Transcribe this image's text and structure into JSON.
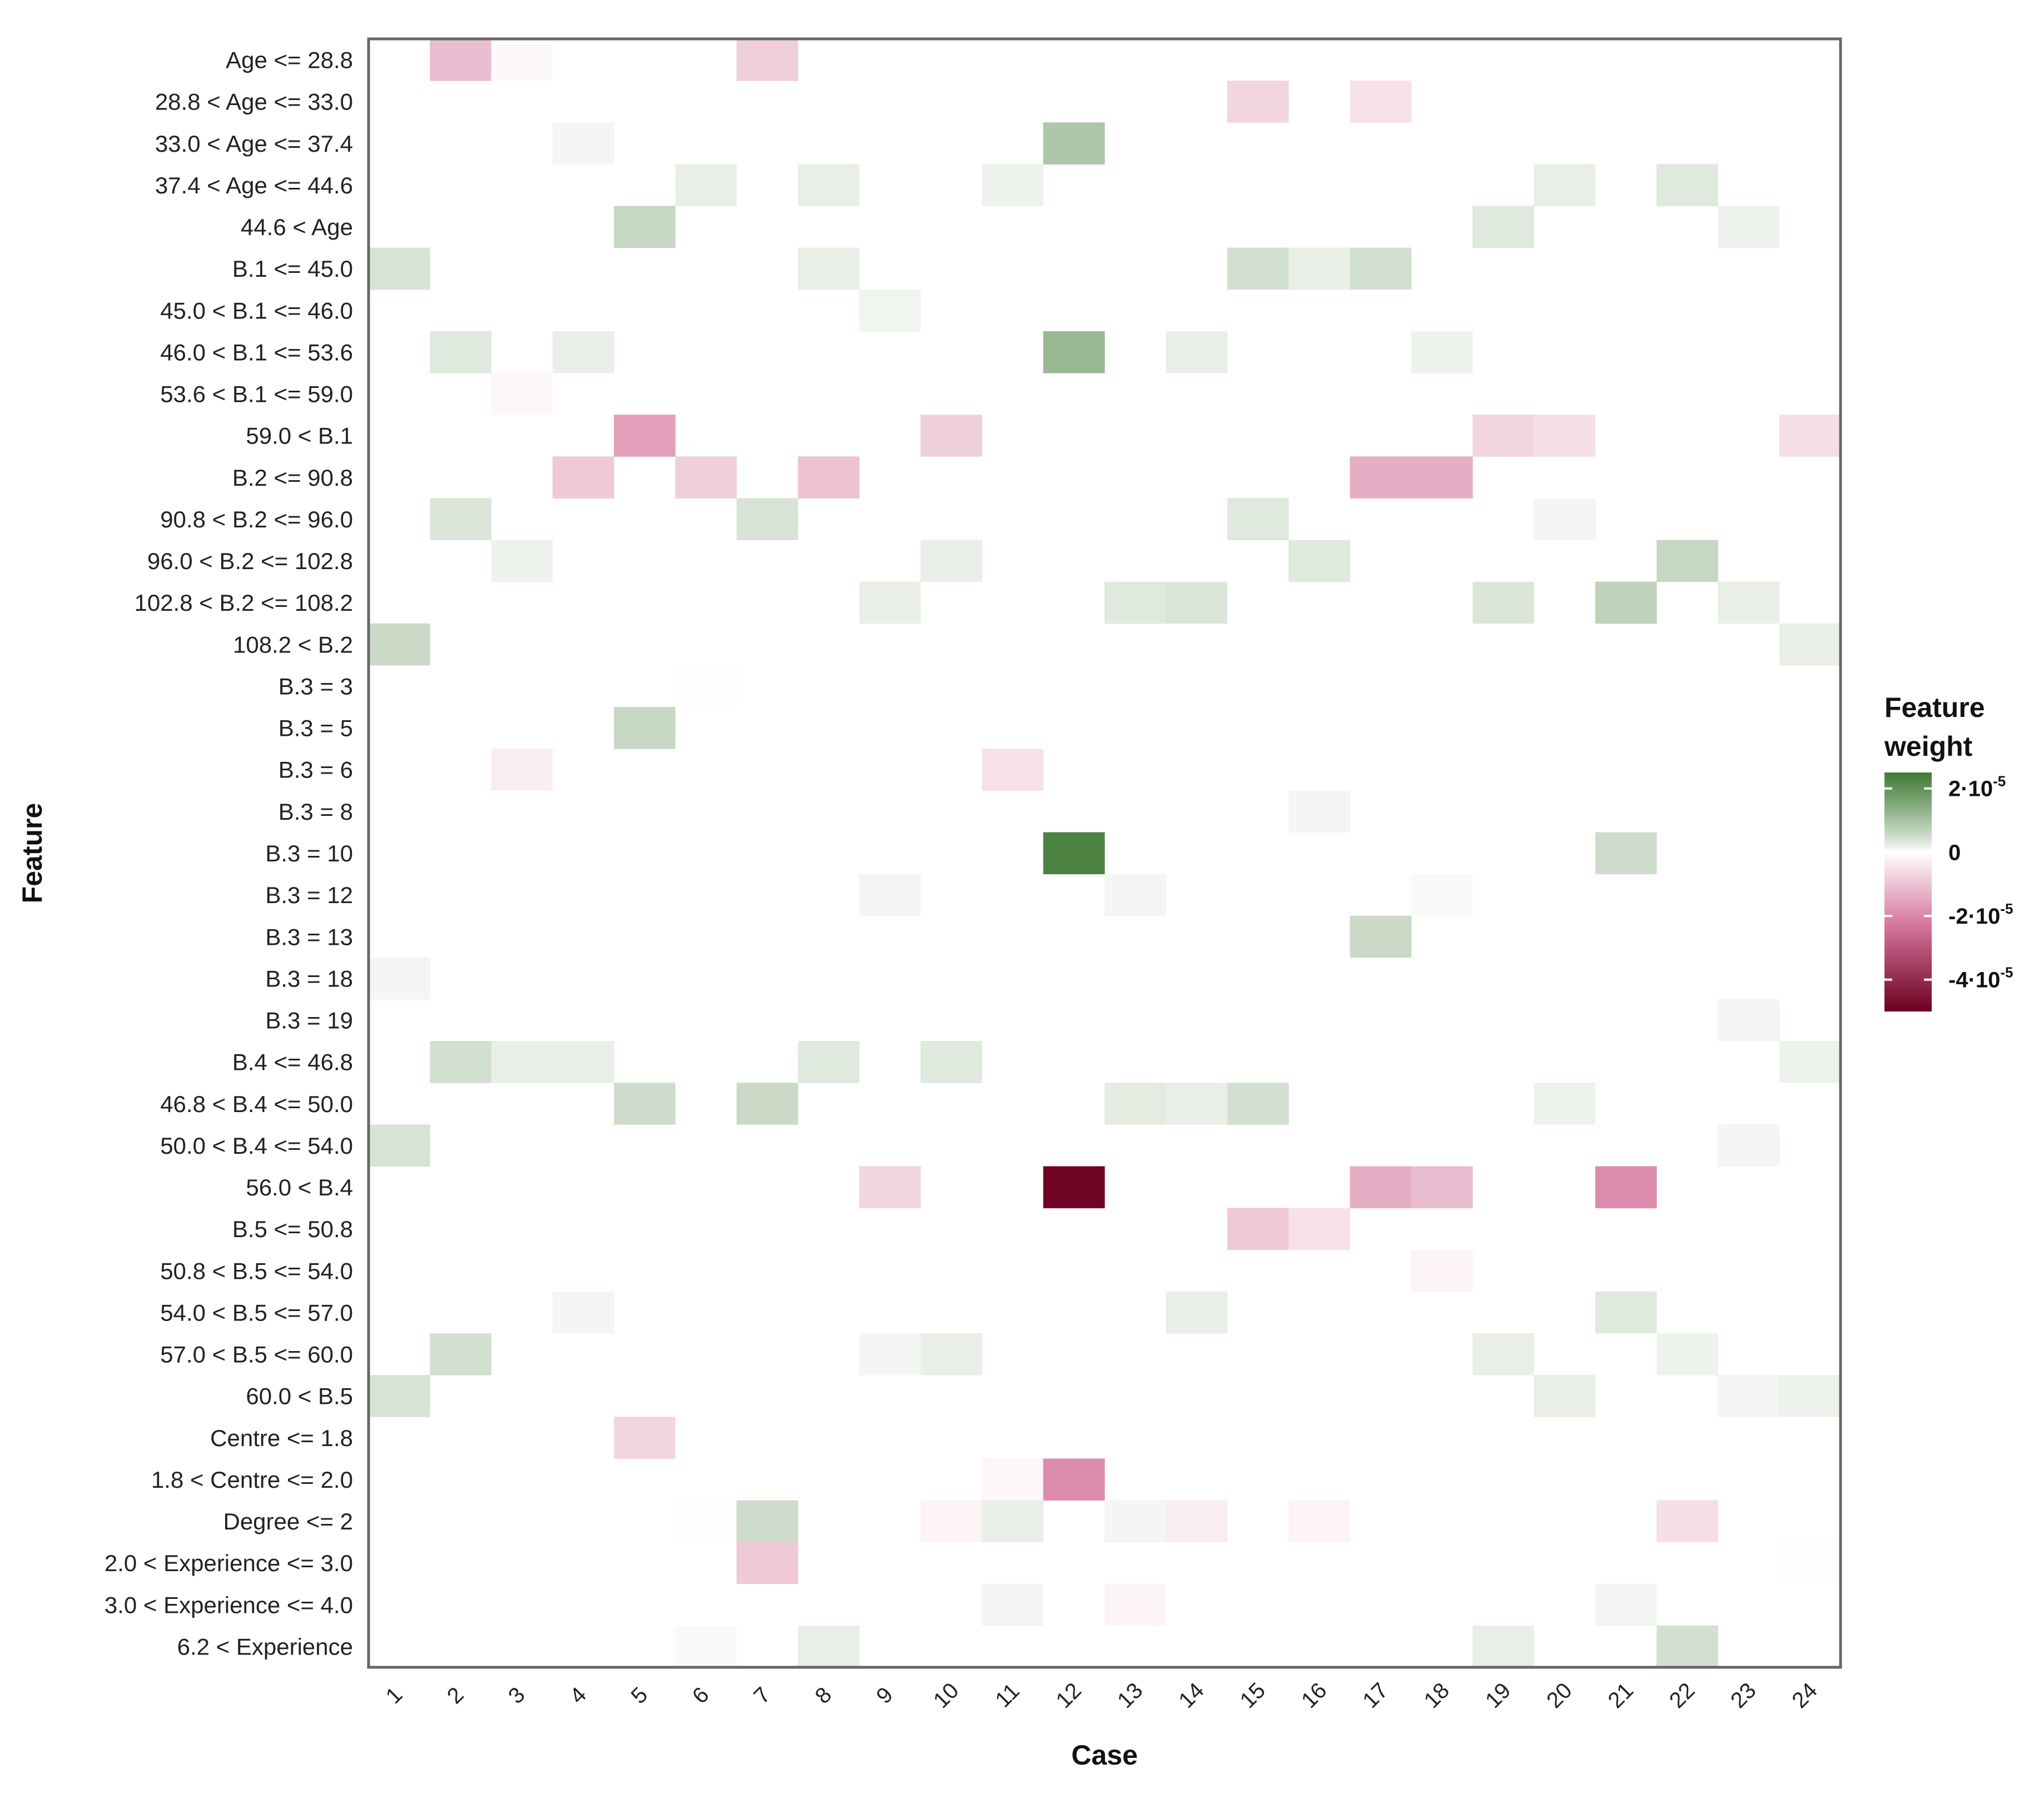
{
  "chart_data": {
    "type": "heatmap",
    "xlabel": "Case",
    "ylabel": "Feature",
    "x_categories": [
      "1",
      "2",
      "3",
      "4",
      "5",
      "6",
      "7",
      "8",
      "9",
      "10",
      "11",
      "12",
      "13",
      "14",
      "15",
      "16",
      "17",
      "18",
      "19",
      "20",
      "21",
      "22",
      "23",
      "24"
    ],
    "y_categories": [
      "Age <= 28.8",
      "28.8 < Age <= 33.0",
      "33.0 < Age <= 37.4",
      "37.4 < Age <= 44.6",
      "44.6 < Age",
      "B.1 <= 45.0",
      "45.0 < B.1 <= 46.0",
      "46.0 < B.1 <= 53.6",
      "53.6 < B.1 <= 59.0",
      "59.0 < B.1",
      "B.2 <= 90.8",
      "90.8 < B.2 <= 96.0",
      "96.0 < B.2 <= 102.8",
      "102.8 < B.2 <= 108.2",
      "108.2 < B.2",
      "B.3 = 3",
      "B.3 = 5",
      "B.3 = 6",
      "B.3 = 8",
      "B.3 = 10",
      "B.3 = 12",
      "B.3 = 13",
      "B.3 = 18",
      "B.3 = 19",
      "B.4 <= 46.8",
      "46.8 < B.4 <= 50.0",
      "50.0 < B.4 <= 54.0",
      "56.0 < B.4",
      "B.5 <= 50.8",
      "50.8 < B.5 <= 54.0",
      "54.0 < B.5 <= 57.0",
      "57.0 < B.5 <= 60.0",
      "60.0 < B.5",
      "Centre <= 1.8",
      "1.8 < Centre <= 2.0",
      "Degree <= 2",
      "2.0 < Experience <= 3.0",
      "3.0 < Experience <= 4.0",
      "6.2 < Experience"
    ],
    "value_unit": "x 1e-5 (feature weight)",
    "color_range": [
      -5,
      2.5
    ],
    "colors": {
      "positive_max": "#3f7a34",
      "zero": "#ffffff",
      "negative_max": "#6b0020"
    },
    "cells": [
      {
        "row": 0,
        "col": 1,
        "value": -1.1
      },
      {
        "row": 0,
        "col": 2,
        "value": -0.1
      },
      {
        "row": 0,
        "col": 6,
        "value": -0.8
      },
      {
        "row": 1,
        "col": 14,
        "value": -0.7
      },
      {
        "row": 1,
        "col": 16,
        "value": -0.5
      },
      {
        "row": 2,
        "col": 3,
        "value": 0.1
      },
      {
        "row": 2,
        "col": 11,
        "value": 0.9
      },
      {
        "row": 3,
        "col": 5,
        "value": 0.2
      },
      {
        "row": 3,
        "col": 7,
        "value": 0.2
      },
      {
        "row": 3,
        "col": 10,
        "value": 0.15
      },
      {
        "row": 3,
        "col": 19,
        "value": 0.2
      },
      {
        "row": 3,
        "col": 21,
        "value": 0.3
      },
      {
        "row": 4,
        "col": 4,
        "value": 0.6
      },
      {
        "row": 4,
        "col": 18,
        "value": 0.3
      },
      {
        "row": 4,
        "col": 22,
        "value": 0.15
      },
      {
        "row": 5,
        "col": 0,
        "value": 0.4
      },
      {
        "row": 5,
        "col": 7,
        "value": 0.2
      },
      {
        "row": 5,
        "col": 14,
        "value": 0.45
      },
      {
        "row": 5,
        "col": 15,
        "value": 0.2
      },
      {
        "row": 5,
        "col": 16,
        "value": 0.45
      },
      {
        "row": 6,
        "col": 8,
        "value": 0.12
      },
      {
        "row": 7,
        "col": 1,
        "value": 0.3
      },
      {
        "row": 7,
        "col": 3,
        "value": 0.2
      },
      {
        "row": 7,
        "col": 11,
        "value": 1.2
      },
      {
        "row": 7,
        "col": 13,
        "value": 0.2
      },
      {
        "row": 7,
        "col": 17,
        "value": 0.15
      },
      {
        "row": 8,
        "col": 2,
        "value": -0.15
      },
      {
        "row": 9,
        "col": 4,
        "value": -1.6
      },
      {
        "row": 9,
        "col": 9,
        "value": -0.8
      },
      {
        "row": 9,
        "col": 18,
        "value": -0.7
      },
      {
        "row": 9,
        "col": 19,
        "value": -0.55
      },
      {
        "row": 9,
        "col": 23,
        "value": -0.55
      },
      {
        "row": 10,
        "col": 3,
        "value": -0.9
      },
      {
        "row": 10,
        "col": 5,
        "value": -0.8
      },
      {
        "row": 10,
        "col": 7,
        "value": -1.0
      },
      {
        "row": 10,
        "col": 16,
        "value": -1.35
      },
      {
        "row": 10,
        "col": 17,
        "value": -1.35
      },
      {
        "row": 11,
        "col": 1,
        "value": 0.35
      },
      {
        "row": 11,
        "col": 6,
        "value": 0.4
      },
      {
        "row": 11,
        "col": 14,
        "value": 0.3
      },
      {
        "row": 11,
        "col": 19,
        "value": 0.1
      },
      {
        "row": 12,
        "col": 2,
        "value": 0.15
      },
      {
        "row": 12,
        "col": 9,
        "value": 0.2
      },
      {
        "row": 12,
        "col": 15,
        "value": 0.3
      },
      {
        "row": 12,
        "col": 21,
        "value": 0.6
      },
      {
        "row": 13,
        "col": 8,
        "value": 0.2
      },
      {
        "row": 13,
        "col": 12,
        "value": 0.3
      },
      {
        "row": 13,
        "col": 13,
        "value": 0.35
      },
      {
        "row": 13,
        "col": 18,
        "value": 0.35
      },
      {
        "row": 13,
        "col": 20,
        "value": 0.7
      },
      {
        "row": 13,
        "col": 22,
        "value": 0.2
      },
      {
        "row": 14,
        "col": 0,
        "value": 0.55
      },
      {
        "row": 14,
        "col": 23,
        "value": 0.2
      },
      {
        "row": 15,
        "col": 5,
        "value": -0.05
      },
      {
        "row": 16,
        "col": 4,
        "value": 0.6
      },
      {
        "row": 17,
        "col": 2,
        "value": -0.3
      },
      {
        "row": 17,
        "col": 10,
        "value": -0.5
      },
      {
        "row": 18,
        "col": 15,
        "value": 0.1
      },
      {
        "row": 19,
        "col": 11,
        "value": 2.3
      },
      {
        "row": 19,
        "col": 20,
        "value": 0.5
      },
      {
        "row": 20,
        "col": 8,
        "value": 0.1
      },
      {
        "row": 20,
        "col": 12,
        "value": 0.1
      },
      {
        "row": 20,
        "col": 17,
        "value": 0.05
      },
      {
        "row": 21,
        "col": 16,
        "value": 0.55
      },
      {
        "row": 22,
        "col": 0,
        "value": 0.1
      },
      {
        "row": 23,
        "col": 22,
        "value": 0.1
      },
      {
        "row": 24,
        "col": 1,
        "value": 0.45
      },
      {
        "row": 24,
        "col": 2,
        "value": 0.2
      },
      {
        "row": 24,
        "col": 3,
        "value": 0.2
      },
      {
        "row": 24,
        "col": 7,
        "value": 0.3
      },
      {
        "row": 24,
        "col": 9,
        "value": 0.3
      },
      {
        "row": 24,
        "col": 23,
        "value": 0.15
      },
      {
        "row": 25,
        "col": 4,
        "value": 0.5
      },
      {
        "row": 25,
        "col": 6,
        "value": 0.55
      },
      {
        "row": 25,
        "col": 12,
        "value": 0.25
      },
      {
        "row": 25,
        "col": 13,
        "value": 0.2
      },
      {
        "row": 25,
        "col": 14,
        "value": 0.45
      },
      {
        "row": 25,
        "col": 19,
        "value": 0.15
      },
      {
        "row": 26,
        "col": 0,
        "value": 0.4
      },
      {
        "row": 26,
        "col": 22,
        "value": 0.1
      },
      {
        "row": 27,
        "col": 8,
        "value": -0.7
      },
      {
        "row": 27,
        "col": 11,
        "value": -4.9
      },
      {
        "row": 27,
        "col": 16,
        "value": -1.35
      },
      {
        "row": 27,
        "col": 17,
        "value": -1.1
      },
      {
        "row": 27,
        "col": 20,
        "value": -1.9
      },
      {
        "row": 28,
        "col": 14,
        "value": -0.9
      },
      {
        "row": 28,
        "col": 15,
        "value": -0.5
      },
      {
        "row": 29,
        "col": 17,
        "value": -0.2
      },
      {
        "row": 30,
        "col": 3,
        "value": 0.1
      },
      {
        "row": 30,
        "col": 13,
        "value": 0.2
      },
      {
        "row": 30,
        "col": 20,
        "value": 0.3
      },
      {
        "row": 31,
        "col": 1,
        "value": 0.45
      },
      {
        "row": 31,
        "col": 8,
        "value": 0.1
      },
      {
        "row": 31,
        "col": 9,
        "value": 0.2
      },
      {
        "row": 31,
        "col": 18,
        "value": 0.2
      },
      {
        "row": 31,
        "col": 21,
        "value": 0.15
      },
      {
        "row": 32,
        "col": 0,
        "value": 0.4
      },
      {
        "row": 32,
        "col": 19,
        "value": 0.2
      },
      {
        "row": 32,
        "col": 22,
        "value": 0.1
      },
      {
        "row": 32,
        "col": 23,
        "value": 0.15
      },
      {
        "row": 33,
        "col": 4,
        "value": -0.7
      },
      {
        "row": 34,
        "col": 10,
        "value": -0.15
      },
      {
        "row": 34,
        "col": 11,
        "value": -1.9
      },
      {
        "row": 35,
        "col": 5,
        "value": -0.05
      },
      {
        "row": 35,
        "col": 6,
        "value": 0.5
      },
      {
        "row": 35,
        "col": 9,
        "value": -0.2
      },
      {
        "row": 35,
        "col": 10,
        "value": 0.2
      },
      {
        "row": 35,
        "col": 12,
        "value": 0.1
      },
      {
        "row": 35,
        "col": 13,
        "value": -0.3
      },
      {
        "row": 35,
        "col": 15,
        "value": -0.2
      },
      {
        "row": 35,
        "col": 21,
        "value": -0.55
      },
      {
        "row": 36,
        "col": 6,
        "value": -0.9
      },
      {
        "row": 36,
        "col": 23,
        "value": -0.05
      },
      {
        "row": 37,
        "col": 10,
        "value": 0.1
      },
      {
        "row": 37,
        "col": 12,
        "value": -0.2
      },
      {
        "row": 37,
        "col": 20,
        "value": 0.1
      },
      {
        "row": 38,
        "col": 5,
        "value": 0.05
      },
      {
        "row": 38,
        "col": 7,
        "value": 0.2
      },
      {
        "row": 38,
        "col": 18,
        "value": 0.2
      },
      {
        "row": 38,
        "col": 21,
        "value": 0.45
      }
    ],
    "legend": {
      "title_line1": "Feature",
      "title_line2": "weight",
      "ticks": [
        {
          "value": 2,
          "label": "2·10",
          "exp": "-5"
        },
        {
          "value": 0,
          "label": "0",
          "exp": ""
        },
        {
          "value": -2,
          "label": "-2·10",
          "exp": "-5"
        },
        {
          "value": -4,
          "label": "-4·10",
          "exp": "-5"
        }
      ]
    }
  }
}
